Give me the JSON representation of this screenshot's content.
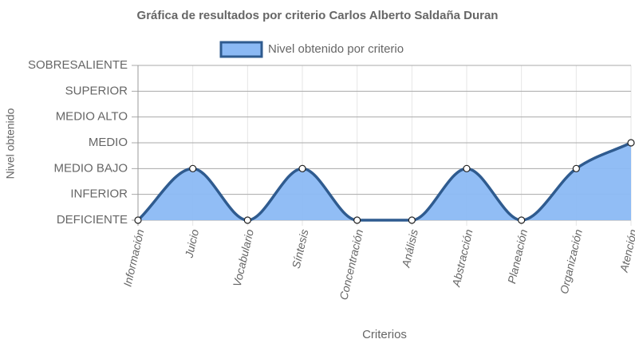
{
  "chart_data": {
    "type": "area",
    "title": "Gráfica de resultados por criterio Carlos Alberto Saldaña Duran",
    "x_label": "Criterios",
    "y_label": "Nivel obtenido",
    "categories": [
      "Información",
      "Juicio",
      "Vocabulario",
      "Síntesis",
      "Concentración",
      "Análisis",
      "Abstracción",
      "Planeación",
      "Organización",
      "Atención"
    ],
    "series": [
      {
        "name": "Nivel obtenido por criterio",
        "color": "#2f5b8f",
        "fill_color": "#8bb9f4",
        "values": [
          0,
          2,
          0,
          2,
          0,
          0,
          2,
          0,
          2,
          3
        ]
      }
    ],
    "ylim": [
      0,
      6
    ],
    "yticks": [
      {
        "value": 0,
        "label": "DEFICIENTE"
      },
      {
        "value": 1,
        "label": "INFERIOR"
      },
      {
        "value": 2,
        "label": "MEDIO BAJO"
      },
      {
        "value": 3,
        "label": "MEDIO"
      },
      {
        "value": 4,
        "label": "MEDIO ALTO"
      },
      {
        "value": 5,
        "label": "SUPERIOR"
      },
      {
        "value": 6,
        "label": "SOBRESALIENTE"
      }
    ],
    "grid": true,
    "legend": "top"
  }
}
